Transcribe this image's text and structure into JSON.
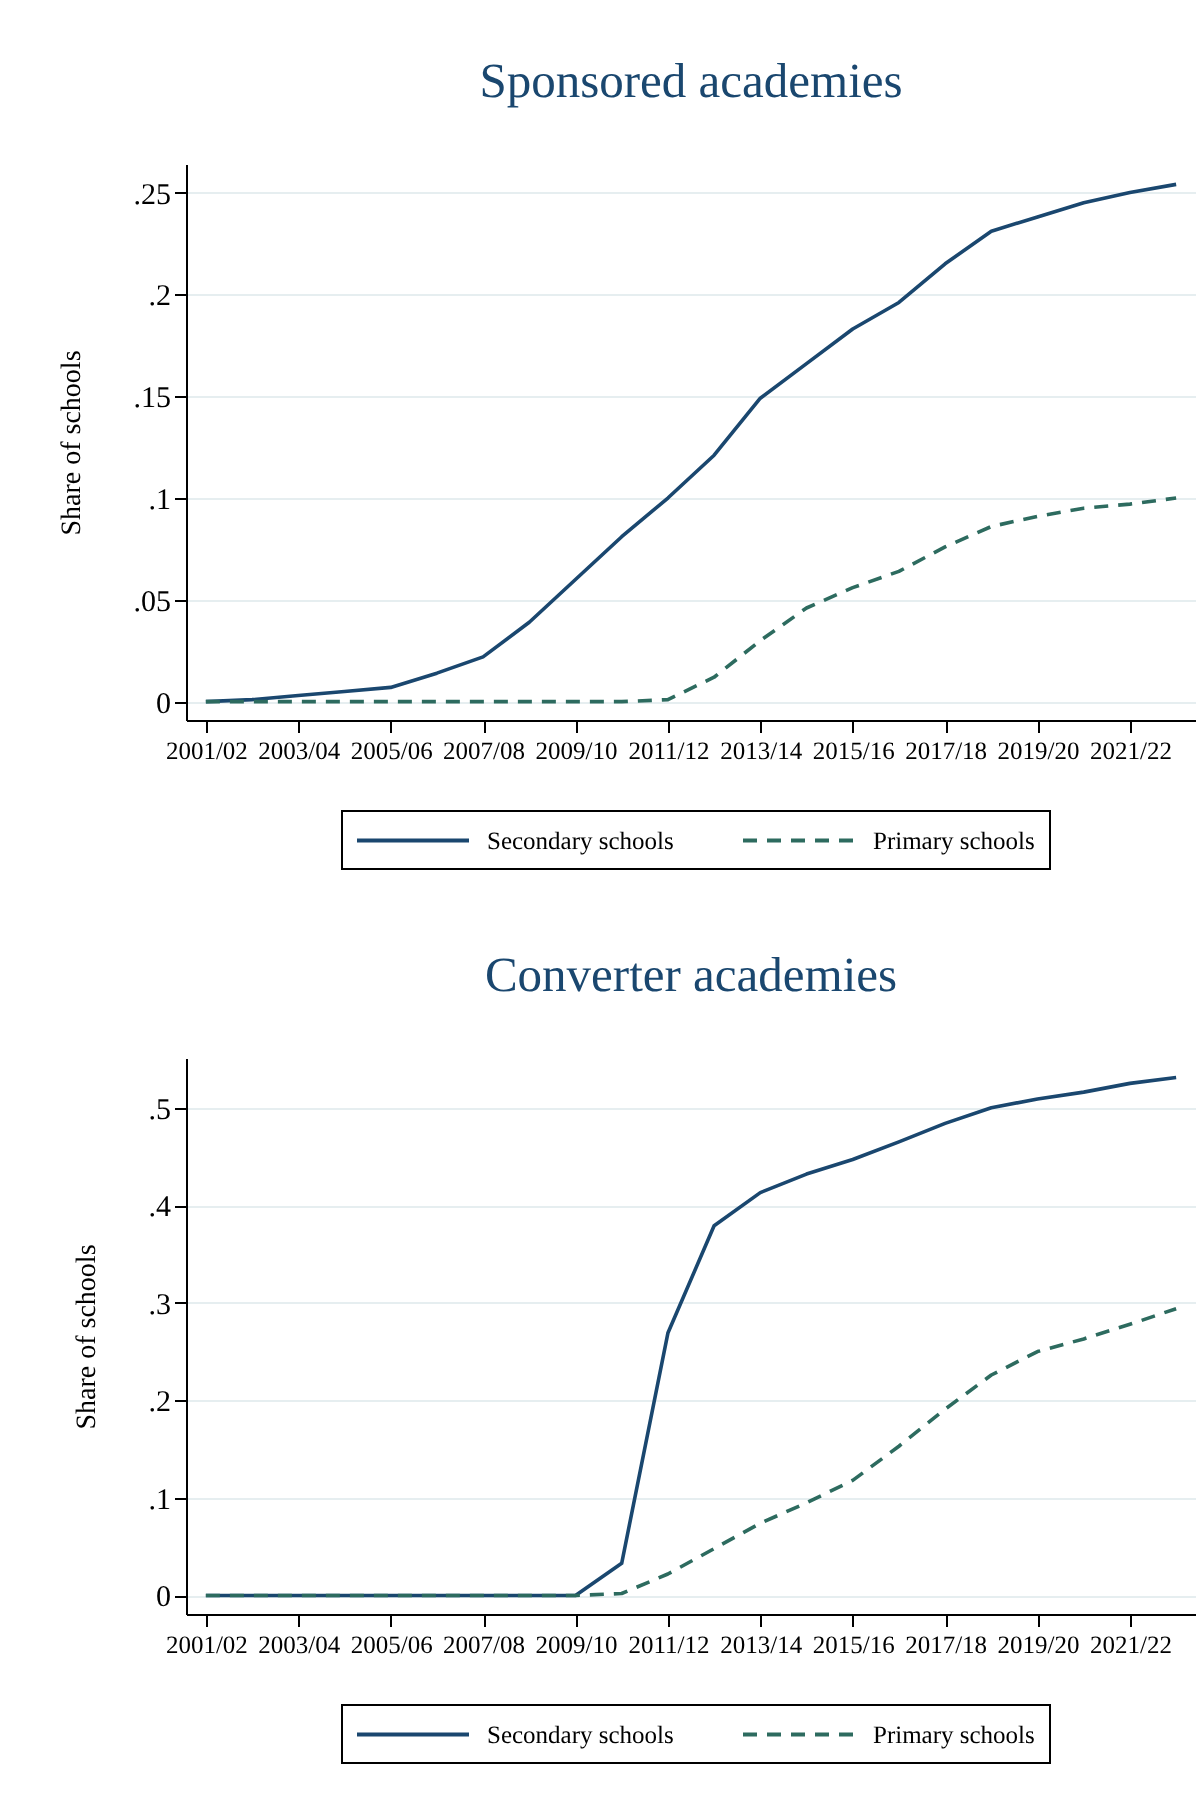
{
  "chart_data": [
    {
      "type": "line",
      "title": "Sponsored academies",
      "ylabel": "Share of schools",
      "categories": [
        "2001/02",
        null,
        "2003/04",
        null,
        "2005/06",
        null,
        "2007/08",
        null,
        "2009/10",
        null,
        "2011/12",
        null,
        "2013/14",
        null,
        "2015/16",
        null,
        "2017/18",
        null,
        "2019/20",
        null,
        "2021/22",
        null
      ],
      "series": [
        {
          "name": "Secondary schools",
          "color": "#1a476f",
          "line_style": "solid",
          "values": [
            0,
            0.001,
            0.003,
            0.005,
            0.007,
            0.014,
            0.022,
            0.039,
            0.06,
            0.081,
            0.1,
            0.121,
            0.149,
            0.166,
            0.183,
            0.196,
            0.215,
            0.231,
            0.238,
            0.245,
            0.25,
            0.254
          ]
        },
        {
          "name": "Primary schools",
          "color": "#2d6b5f",
          "line_style": "dashed",
          "values": [
            0,
            0,
            0,
            0,
            0,
            0,
            0,
            0,
            0,
            0,
            0.001,
            0.012,
            0.03,
            0.046,
            0.056,
            0.064,
            0.076,
            0.086,
            0.091,
            0.095,
            0.097,
            0.1
          ]
        }
      ],
      "ylim": [
        -0.009,
        0.264
      ],
      "yticks": [
        0,
        {
          "value": 0.05,
          "label": ".05"
        },
        {
          "value": 0.1,
          "label": ".1"
        },
        {
          "value": 0.15,
          "label": ".15"
        },
        {
          "value": 0.2,
          "label": ".2"
        },
        {
          "value": 0.25,
          "label": ".25"
        }
      ],
      "grid": "y",
      "legend": "bottom"
    },
    {
      "type": "line",
      "title": "Converter academies",
      "ylabel": "Share of schools",
      "categories": [
        "2001/02",
        null,
        "2003/04",
        null,
        "2005/06",
        null,
        "2007/08",
        null,
        "2009/10",
        null,
        "2011/12",
        null,
        "2013/14",
        null,
        "2015/16",
        null,
        "2017/18",
        null,
        "2019/20",
        null,
        "2021/22",
        null
      ],
      "series": [
        {
          "name": "Secondary schools",
          "color": "#1a476f",
          "line_style": "solid",
          "values": [
            0,
            0,
            0,
            0,
            0,
            0,
            0,
            0,
            0,
            0.033,
            0.269,
            0.379,
            0.413,
            0.432,
            0.447,
            0.465,
            0.484,
            0.5,
            0.509,
            0.516,
            0.525,
            0.531
          ]
        },
        {
          "name": "Primary schools",
          "color": "#2d6b5f",
          "line_style": "dashed",
          "values": [
            0,
            0,
            0,
            0,
            0,
            0,
            0,
            0,
            0,
            0.002,
            0.022,
            0.048,
            0.074,
            0.095,
            0.118,
            0.153,
            0.191,
            0.226,
            0.25,
            0.263,
            0.278,
            0.294
          ]
        }
      ],
      "ylim": [
        -0.019,
        0.551
      ],
      "yticks": [
        0,
        {
          "value": 0.1,
          "label": ".1"
        },
        {
          "value": 0.2,
          "label": ".2"
        },
        {
          "value": 0.3,
          "label": ".3"
        },
        {
          "value": 0.4,
          "label": ".4"
        },
        {
          "value": 0.5,
          "label": ".5"
        }
      ],
      "grid": "y",
      "legend": "bottom"
    }
  ]
}
